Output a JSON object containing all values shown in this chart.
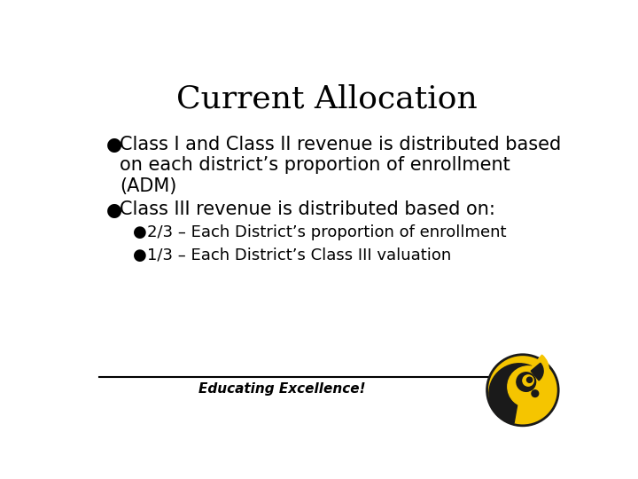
{
  "title": "Current Allocation",
  "title_fontsize": 26,
  "background_color": "#ffffff",
  "text_color": "#000000",
  "bullet1_line1": "Class I and Class II revenue is distributed based",
  "bullet1_line2": "on each district’s proportion of enrollment",
  "bullet1_line3": "(ADM)",
  "bullet2": "Class III revenue is distributed based on:",
  "sub_bullet1": "2/3 – Each District’s proportion of enrollment",
  "sub_bullet2": "1/3 – Each District’s Class III valuation",
  "footer_text": "Educating Excellence!",
  "footer_line_color": "#000000",
  "bullet_symbol": "●",
  "main_fontsize": 15,
  "sub_fontsize": 13,
  "footer_fontsize": 11,
  "mascot_yellow": "#F5C500",
  "mascot_black": "#1a1a1a"
}
